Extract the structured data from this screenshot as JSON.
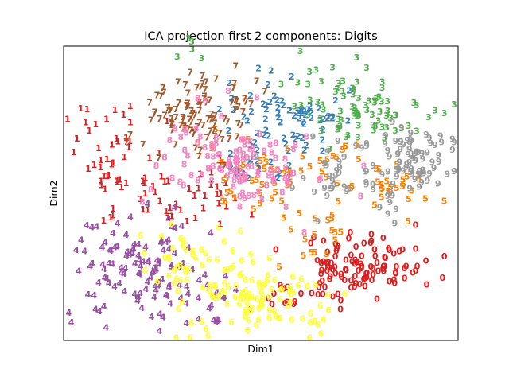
{
  "chart_data": {
    "type": "scatter",
    "title": "ICA projection first 2 components: Digits",
    "xlabel": "Dim1",
    "ylabel": "Dim2",
    "xlim": [
      0,
      100
    ],
    "ylim": [
      0,
      100
    ],
    "axis_ticks": "hidden",
    "legend": "none",
    "marker": "digit label text",
    "series": [
      {
        "label": "0",
        "color": "#e41a1c",
        "clusters": [
          {
            "cx": 76,
            "cy": 26,
            "sx": 8.5,
            "sy": 5.5,
            "n": 90
          },
          {
            "cx": 68,
            "cy": 21,
            "sx": 5,
            "sy": 4,
            "n": 25
          },
          {
            "cx": 55,
            "cy": 15,
            "sx": 3,
            "sy": 2,
            "n": 10
          }
        ]
      },
      {
        "label": "1",
        "color": "#e41a1c",
        "clusters": [
          {
            "cx": 10,
            "cy": 63,
            "sx": 5.5,
            "sy": 9,
            "n": 45
          },
          {
            "cx": 30,
            "cy": 50,
            "sx": 9,
            "sy": 6,
            "n": 40
          }
        ]
      },
      {
        "label": "2",
        "color": "#377eb8",
        "clusters": [
          {
            "cx": 57,
            "cy": 76,
            "sx": 7,
            "sy": 6,
            "n": 70
          },
          {
            "cx": 48,
            "cy": 60,
            "sx": 6,
            "sy": 4,
            "n": 20
          }
        ]
      },
      {
        "label": "3",
        "color": "#4daf4a",
        "clusters": [
          {
            "cx": 76,
            "cy": 77,
            "sx": 8,
            "sy": 6,
            "n": 70
          },
          {
            "cx": 64,
            "cy": 88,
            "sx": 6,
            "sy": 5,
            "n": 15
          },
          {
            "cx": 32,
            "cy": 98,
            "sx": 3,
            "sy": 3,
            "n": 5
          }
        ]
      },
      {
        "label": "4",
        "color": "#984ea3",
        "clusters": [
          {
            "cx": 19,
            "cy": 25,
            "sx": 8,
            "sy": 9,
            "n": 110
          },
          {
            "cx": 36,
            "cy": 15,
            "sx": 6,
            "sy": 5,
            "n": 25
          }
        ]
      },
      {
        "label": "5",
        "color": "#ff7f00",
        "clusters": [
          {
            "cx": 52,
            "cy": 57,
            "sx": 12,
            "sy": 8,
            "n": 60
          },
          {
            "cx": 84,
            "cy": 52,
            "sx": 5,
            "sy": 4,
            "n": 25
          },
          {
            "cx": 66,
            "cy": 35,
            "sx": 5,
            "sy": 5,
            "n": 15
          }
        ]
      },
      {
        "label": "6",
        "color": "#ffff33",
        "clusters": [
          {
            "cx": 50,
            "cy": 14,
            "sx": 10,
            "sy": 6,
            "n": 110
          },
          {
            "cx": 30,
            "cy": 27,
            "sx": 6,
            "sy": 5,
            "n": 40
          }
        ]
      },
      {
        "label": "7",
        "color": "#a65628",
        "clusters": [
          {
            "cx": 33,
            "cy": 77,
            "sx": 7,
            "sy": 8,
            "n": 110
          }
        ]
      },
      {
        "label": "8",
        "color": "#f781bf",
        "clusters": [
          {
            "cx": 44,
            "cy": 60,
            "sx": 10,
            "sy": 8,
            "n": 120
          }
        ]
      },
      {
        "label": "9",
        "color": "#999999",
        "clusters": [
          {
            "cx": 90,
            "cy": 62,
            "sx": 5,
            "sy": 5,
            "n": 70
          },
          {
            "cx": 74,
            "cy": 55,
            "sx": 8,
            "sy": 7,
            "n": 50
          }
        ]
      }
    ]
  }
}
